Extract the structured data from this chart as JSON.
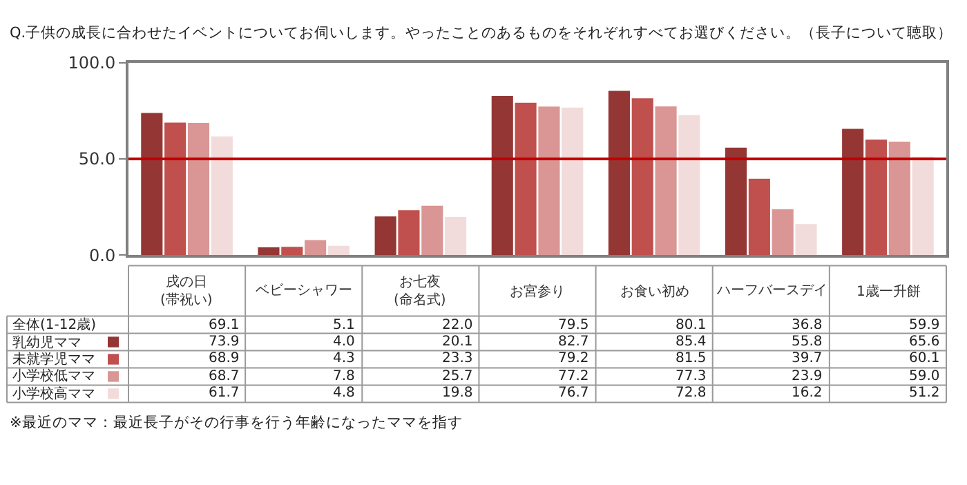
{
  "chart_data": {
    "type": "bar",
    "title": "Q.子供の成長に合わせたイベントについてお伺いします。やったことのあるものをそれぞれすべてお選びください。（長子について聴取）",
    "categories": [
      "戌の日\n(帯祝い)",
      "ベビーシャワー",
      "お七夜\n(命名式)",
      "お宮参り",
      "お食い初め",
      "ハーフバースデイ",
      "1歳一升餅"
    ],
    "series": [
      {
        "name": "乳幼児ママ",
        "color": "#943634",
        "values": [
          73.9,
          4.0,
          20.1,
          82.7,
          85.4,
          55.8,
          65.6
        ],
        "value_labels": [
          "73.9",
          "4.0",
          "20.1",
          "82.7",
          "85.4",
          "55.8",
          "65.6"
        ]
      },
      {
        "name": "未就学児ママ",
        "color": "#c0504d",
        "values": [
          68.9,
          4.3,
          23.3,
          79.2,
          81.5,
          39.7,
          60.1
        ],
        "value_labels": [
          "68.9",
          "4.3",
          "23.3",
          "79.2",
          "81.5",
          "39.7",
          "60.1"
        ]
      },
      {
        "name": "小学校低ママ",
        "color": "#d99694",
        "values": [
          68.7,
          7.8,
          25.7,
          77.2,
          77.3,
          23.9,
          59.0
        ],
        "value_labels": [
          "68.7",
          "7.8",
          "25.7",
          "77.2",
          "77.3",
          "23.9",
          "59.0"
        ]
      },
      {
        "name": "小学校高ママ",
        "color": "#f2dcdb",
        "values": [
          61.7,
          4.8,
          19.8,
          76.7,
          72.8,
          16.2,
          51.2
        ],
        "value_labels": [
          "61.7",
          "4.8",
          "19.8",
          "76.7",
          "72.8",
          "16.2",
          "51.2"
        ]
      }
    ],
    "ylim": [
      0,
      100
    ],
    "yticks": [
      {
        "value": 0,
        "label": "0.0"
      },
      {
        "value": 50,
        "label": "50.0"
      },
      {
        "value": 100,
        "label": "100.0"
      }
    ],
    "ref_lines": [
      {
        "axis": "y",
        "value": 50,
        "color": "#c00000"
      }
    ],
    "legend": "bottom left",
    "tick_labels": "y",
    "annotations": [
      "※最近のママ：最近長子がその行事を行う年齢になったママを指す",
      "全体(1-12歳)",
      "69.1",
      "5.1",
      "22.0",
      "79.5",
      "80.1",
      "36.8",
      "59.9"
    ]
  }
}
